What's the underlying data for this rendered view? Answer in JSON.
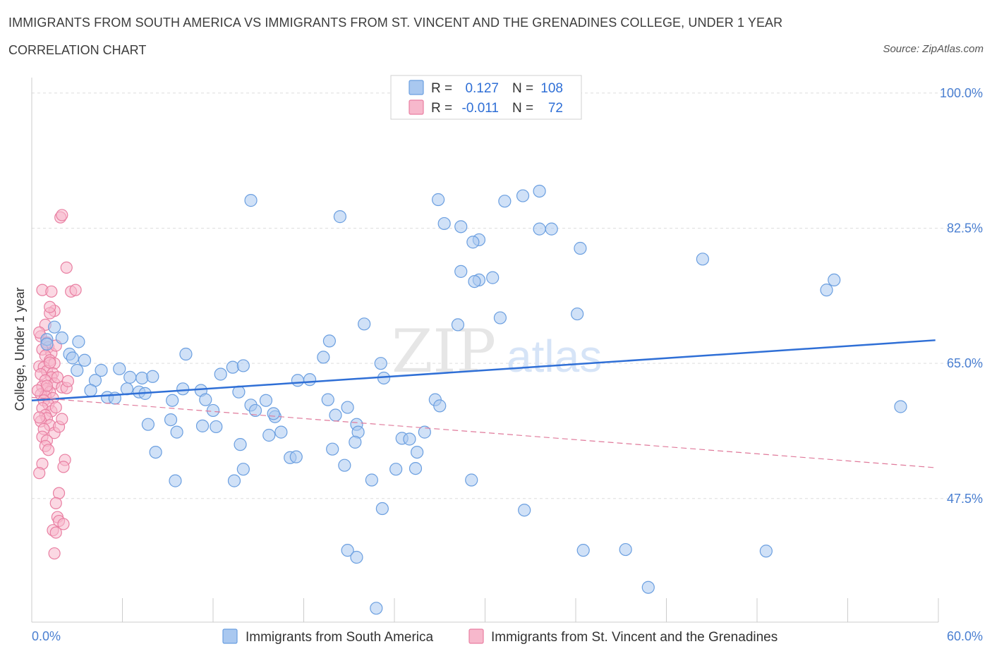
{
  "header": {
    "title": "IMMIGRANTS FROM SOUTH AMERICA VS IMMIGRANTS FROM ST. VINCENT AND THE GRENADINES COLLEGE, UNDER 1 YEAR",
    "subtitle": "CORRELATION CHART",
    "source": "Source: ZipAtlas.com"
  },
  "watermark": {
    "zip": "ZIP",
    "atlas": "atlas"
  },
  "colors": {
    "blue_fill": "#a9c8f0",
    "blue_stroke": "#6b9fe0",
    "blue_line": "#2f6fd6",
    "pink_fill": "#f7b8cc",
    "pink_stroke": "#e97fa2",
    "pink_line": "#e07a9b",
    "tick_label": "#4a7fd1",
    "grid": "#dddddd"
  },
  "legend_top": {
    "rows": [
      {
        "r_label": "R =",
        "r_value": "0.127",
        "n_label": "N =",
        "n_value": "108",
        "color": "blue"
      },
      {
        "r_label": "R =",
        "r_value": "-0.011",
        "n_label": "N =",
        "n_value": "72",
        "color": "pink"
      }
    ]
  },
  "legend_bottom": {
    "items": [
      {
        "label": "Immigrants from South America",
        "color": "blue"
      },
      {
        "label": "Immigrants from St. Vincent and the Grenadines",
        "color": "pink"
      }
    ]
  },
  "chart_data": {
    "type": "scatter",
    "ylabel": "College, Under 1 year",
    "xlim": [
      0,
      60
    ],
    "ylim": [
      31.5,
      102
    ],
    "x_tick_labels": [
      {
        "value": 0,
        "label": "0.0%"
      },
      {
        "value": 60,
        "label": "60.0%"
      }
    ],
    "y_tick_labels": [
      {
        "value": 100,
        "label": "100.0%"
      },
      {
        "value": 82.5,
        "label": "82.5%"
      },
      {
        "value": 65,
        "label": "65.0%"
      },
      {
        "value": 47.5,
        "label": "47.5%"
      }
    ],
    "grid": "horizontal dashed",
    "legend_placement": "top-center",
    "series": [
      {
        "name": "Immigrants from South America",
        "color": "blue",
        "trend": {
          "x": [
            0,
            59.8
          ],
          "y": [
            60.2,
            68.0
          ],
          "style": "solid"
        },
        "points": [
          [
            1.5,
            69.7
          ],
          [
            1.0,
            68.1
          ],
          [
            2.0,
            68.3
          ],
          [
            1.0,
            67.5
          ],
          [
            3.1,
            67.8
          ],
          [
            2.5,
            66.2
          ],
          [
            2.7,
            65.7
          ],
          [
            3.5,
            65.4
          ],
          [
            3.0,
            64.1
          ],
          [
            4.6,
            64.1
          ],
          [
            5.8,
            64.3
          ],
          [
            4.2,
            62.8
          ],
          [
            6.5,
            63.2
          ],
          [
            7.3,
            63.1
          ],
          [
            8.0,
            63.3
          ],
          [
            6.3,
            61.7
          ],
          [
            3.9,
            61.5
          ],
          [
            5.0,
            60.6
          ],
          [
            5.5,
            60.5
          ],
          [
            7.1,
            61.3
          ],
          [
            7.5,
            61.1
          ],
          [
            9.3,
            60.2
          ],
          [
            10.0,
            61.7
          ],
          [
            11.2,
            61.5
          ],
          [
            10.2,
            66.2
          ],
          [
            11.5,
            60.3
          ],
          [
            12.5,
            63.6
          ],
          [
            13.3,
            64.5
          ],
          [
            14.0,
            64.7
          ],
          [
            12.0,
            58.9
          ],
          [
            11.3,
            56.9
          ],
          [
            9.2,
            57.7
          ],
          [
            9.6,
            56.1
          ],
          [
            7.7,
            57.1
          ],
          [
            8.2,
            53.5
          ],
          [
            9.5,
            49.8
          ],
          [
            12.2,
            56.8
          ],
          [
            13.7,
            61.3
          ],
          [
            14.5,
            59.6
          ],
          [
            13.8,
            54.5
          ],
          [
            14.0,
            51.3
          ],
          [
            13.4,
            49.8
          ],
          [
            15.5,
            60.2
          ],
          [
            14.8,
            58.9
          ],
          [
            16.1,
            58.1
          ],
          [
            16.5,
            56.1
          ],
          [
            15.7,
            55.7
          ],
          [
            16.0,
            58.5
          ],
          [
            17.1,
            52.8
          ],
          [
            17.5,
            52.9
          ],
          [
            17.6,
            62.8
          ],
          [
            18.4,
            62.9
          ],
          [
            19.3,
            65.8
          ],
          [
            19.7,
            67.9
          ],
          [
            20.1,
            58.3
          ],
          [
            19.6,
            60.3
          ],
          [
            20.9,
            59.3
          ],
          [
            21.5,
            57.1
          ],
          [
            21.6,
            56.1
          ],
          [
            21.4,
            54.8
          ],
          [
            20.7,
            51.8
          ],
          [
            23.1,
            65.0
          ],
          [
            23.3,
            63.1
          ],
          [
            22.0,
            70.1
          ],
          [
            22.5,
            49.9
          ],
          [
            23.2,
            46.2
          ],
          [
            24.5,
            55.3
          ],
          [
            25.0,
            55.2
          ],
          [
            24.1,
            51.3
          ],
          [
            25.5,
            53.5
          ],
          [
            26.0,
            56.1
          ],
          [
            25.4,
            51.4
          ],
          [
            26.9,
            86.2
          ],
          [
            27.3,
            83.1
          ],
          [
            28.4,
            82.7
          ],
          [
            29.6,
            81.0
          ],
          [
            28.4,
            76.9
          ],
          [
            29.2,
            80.7
          ],
          [
            29.6,
            75.8
          ],
          [
            29.3,
            75.6
          ],
          [
            30.5,
            76.1
          ],
          [
            31.3,
            86.0
          ],
          [
            33.6,
            87.3
          ],
          [
            32.5,
            86.7
          ],
          [
            31.0,
            70.9
          ],
          [
            28.2,
            70.0
          ],
          [
            26.7,
            60.3
          ],
          [
            27.0,
            59.5
          ],
          [
            29.1,
            49.9
          ],
          [
            32.6,
            46.0
          ],
          [
            34.4,
            82.4
          ],
          [
            33.6,
            82.4
          ],
          [
            36.3,
            79.9
          ],
          [
            36.1,
            71.4
          ],
          [
            36.5,
            40.8
          ],
          [
            39.3,
            40.9
          ],
          [
            40.8,
            36.0
          ],
          [
            44.4,
            78.5
          ],
          [
            48.6,
            40.7
          ],
          [
            53.1,
            75.8
          ],
          [
            52.6,
            74.5
          ],
          [
            57.5,
            59.4
          ],
          [
            20.4,
            84.0
          ],
          [
            14.5,
            86.1
          ],
          [
            19.9,
            53.9
          ],
          [
            20.9,
            40.8
          ],
          [
            21.5,
            39.9
          ],
          [
            22.8,
            33.3
          ]
        ]
      },
      {
        "name": "Immigrants from St. Vincent and the Grenadines",
        "color": "pink",
        "trend": {
          "x": [
            0,
            59.8
          ],
          "y": [
            60.6,
            51.5
          ],
          "style": "dashed"
        },
        "points": [
          [
            0.6,
            68.5
          ],
          [
            1.0,
            67.7
          ],
          [
            1.1,
            67.1
          ],
          [
            0.7,
            66.8
          ],
          [
            1.3,
            66.3
          ],
          [
            0.9,
            66.0
          ],
          [
            1.2,
            65.4
          ],
          [
            1.5,
            65.0
          ],
          [
            0.5,
            64.6
          ],
          [
            0.8,
            64.5
          ],
          [
            1.0,
            64.0
          ],
          [
            1.4,
            63.7
          ],
          [
            0.6,
            63.6
          ],
          [
            1.3,
            63.2
          ],
          [
            0.9,
            62.8
          ],
          [
            1.5,
            62.4
          ],
          [
            0.7,
            62.0
          ],
          [
            1.0,
            61.7
          ],
          [
            1.2,
            61.3
          ],
          [
            0.6,
            61.0
          ],
          [
            0.9,
            60.8
          ],
          [
            1.4,
            60.5
          ],
          [
            0.8,
            60.2
          ],
          [
            1.1,
            59.7
          ],
          [
            0.7,
            59.2
          ],
          [
            1.3,
            58.8
          ],
          [
            0.9,
            58.3
          ],
          [
            1.0,
            57.9
          ],
          [
            0.6,
            57.5
          ],
          [
            1.2,
            57.0
          ],
          [
            0.8,
            56.5
          ],
          [
            1.5,
            56.0
          ],
          [
            0.7,
            55.5
          ],
          [
            1.0,
            55.0
          ],
          [
            0.9,
            54.3
          ],
          [
            1.1,
            53.8
          ],
          [
            0.7,
            52.0
          ],
          [
            0.5,
            50.8
          ],
          [
            1.5,
            71.8
          ],
          [
            1.2,
            71.5
          ],
          [
            0.7,
            74.5
          ],
          [
            1.3,
            74.3
          ],
          [
            1.2,
            72.3
          ],
          [
            0.9,
            70.0
          ],
          [
            1.7,
            63.2
          ],
          [
            2.0,
            61.9
          ],
          [
            2.3,
            61.8
          ],
          [
            2.4,
            62.7
          ],
          [
            1.6,
            59.3
          ],
          [
            1.8,
            56.8
          ],
          [
            2.0,
            57.8
          ],
          [
            2.2,
            52.5
          ],
          [
            2.1,
            51.6
          ],
          [
            1.8,
            48.2
          ],
          [
            1.6,
            46.9
          ],
          [
            1.7,
            45.1
          ],
          [
            1.8,
            44.6
          ],
          [
            2.1,
            44.2
          ],
          [
            1.4,
            43.4
          ],
          [
            1.6,
            43.1
          ],
          [
            1.5,
            40.4
          ],
          [
            1.9,
            83.9
          ],
          [
            2.0,
            84.2
          ],
          [
            2.3,
            77.4
          ],
          [
            2.6,
            74.3
          ],
          [
            2.9,
            74.5
          ],
          [
            1.2,
            65.1
          ],
          [
            1.0,
            62.1
          ],
          [
            0.4,
            61.5
          ],
          [
            0.5,
            58.0
          ],
          [
            1.6,
            67.3
          ],
          [
            0.5,
            69.0
          ]
        ]
      }
    ]
  }
}
